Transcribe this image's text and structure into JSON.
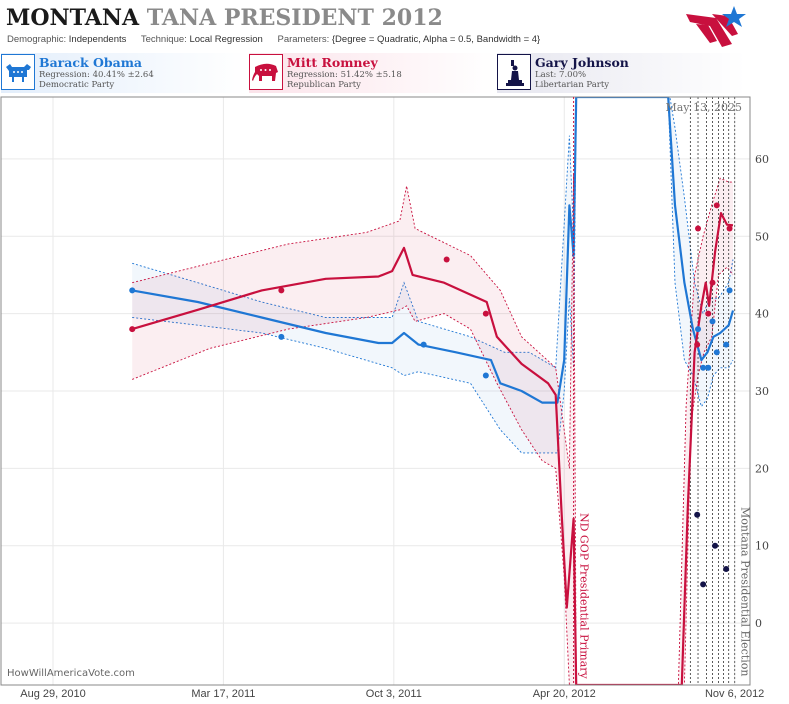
{
  "header": {
    "title_state": "MONTANA",
    "title_state_suffix": "TANA",
    "title_race": "PRESIDENT 2012",
    "demographic_label": "Demographic:",
    "demographic_value": "Independents",
    "technique_label": "Technique:",
    "technique_value": "Local Regression",
    "parameters_label": "Parameters:",
    "parameters_value": "{Degree = Quadratic, Alpha = 0.5, Bandwidth = 4}"
  },
  "candidates": [
    {
      "name": "Barack Obama",
      "stat": "Regression: 40.41% ±2.64",
      "party": "Democratic Party",
      "color": "#1f77d4",
      "icon": "donkey-icon"
    },
    {
      "name": "Mitt Romney",
      "stat": "Regression: 51.42% ±5.18",
      "party": "Republican Party",
      "color": "#c8103e",
      "icon": "elephant-icon"
    },
    {
      "name": "Gary Johnson",
      "stat": "Last: 7.00%",
      "party": "Libertarian Party",
      "color": "#141448",
      "icon": "liberty-icon"
    }
  ],
  "credit": "HowWillAmericaVote.com",
  "current_date": "May 13, 2025",
  "chart_data": {
    "type": "line",
    "x_ticks": [
      "Aug 29, 2010",
      "Mar 17, 2011",
      "Oct 3, 2011",
      "Apr 20, 2012",
      "Nov 6, 2012"
    ],
    "x_range": [
      "2010-06-29",
      "2012-11-24"
    ],
    "y_ticks": [
      0,
      10,
      20,
      30,
      40,
      50,
      60
    ],
    "ylim": [
      -8,
      68
    ],
    "events": [
      {
        "date": "2012-05-01",
        "label": "ND GOP Presidential Primary"
      },
      {
        "date": "2012-11-06",
        "label": "Montana Presidential Election"
      }
    ],
    "poll_guides": [
      "2012-09-15",
      "2012-09-24",
      "2012-10-04",
      "2012-10-11",
      "2012-10-18",
      "2012-10-24",
      "2012-10-30"
    ],
    "series": [
      {
        "name": "Barack Obama",
        "color": "#1f77d4",
        "points": [
          [
            "2010-11-30",
            43
          ],
          [
            "2011-05-24",
            37
          ],
          [
            "2011-11-07",
            36
          ],
          [
            "2012-01-19",
            32
          ],
          [
            "2012-09-24",
            38
          ],
          [
            "2012-09-30",
            33
          ],
          [
            "2012-10-06",
            33
          ],
          [
            "2012-10-11",
            39
          ],
          [
            "2012-10-16",
            35
          ],
          [
            "2012-10-27",
            36
          ],
          [
            "2012-10-31",
            43
          ]
        ],
        "trend": [
          [
            "2010-11-30",
            43
          ],
          [
            "2011-02-15",
            41.5
          ],
          [
            "2011-05-01",
            39.5
          ],
          [
            "2011-07-15",
            37.5
          ],
          [
            "2011-09-15",
            36.2
          ],
          [
            "2011-10-01",
            36.2
          ],
          [
            "2011-10-15",
            37.5
          ],
          [
            "2011-11-01",
            36
          ],
          [
            "2011-12-15",
            35
          ],
          [
            "2012-01-25",
            34
          ],
          [
            "2012-02-05",
            31
          ],
          [
            "2012-03-01",
            30
          ],
          [
            "2012-03-25",
            28.5
          ],
          [
            "2012-04-12",
            28.5
          ],
          [
            "2012-04-20",
            34
          ],
          [
            "2012-04-26",
            54
          ],
          [
            "2012-05-01",
            47.5
          ],
          [
            "2012-05-04",
            68
          ],
          [
            "2012-08-20",
            68
          ],
          [
            "2012-08-28",
            54
          ],
          [
            "2012-09-08",
            44
          ],
          [
            "2012-09-18",
            38
          ],
          [
            "2012-09-28",
            34
          ],
          [
            "2012-10-05",
            35
          ],
          [
            "2012-10-12",
            37
          ],
          [
            "2012-10-20",
            37.5
          ],
          [
            "2012-10-30",
            38.5
          ],
          [
            "2012-11-04",
            40.4
          ]
        ],
        "band_upper": [
          [
            "2010-11-30",
            46.5
          ],
          [
            "2011-02-15",
            44
          ],
          [
            "2011-05-01",
            41.5
          ],
          [
            "2011-07-15",
            39.5
          ],
          [
            "2011-10-01",
            39.5
          ],
          [
            "2011-10-15",
            44
          ],
          [
            "2011-11-01",
            39
          ],
          [
            "2012-01-01",
            37
          ],
          [
            "2012-02-10",
            35
          ],
          [
            "2012-03-10",
            35
          ],
          [
            "2012-04-10",
            33
          ],
          [
            "2012-04-26",
            63
          ],
          [
            "2012-05-01",
            50
          ],
          [
            "2012-05-04",
            68
          ],
          [
            "2012-08-22",
            68
          ],
          [
            "2012-08-28",
            64
          ],
          [
            "2012-09-08",
            55
          ],
          [
            "2012-09-20",
            44
          ],
          [
            "2012-09-30",
            40
          ],
          [
            "2012-10-08",
            42
          ],
          [
            "2012-10-18",
            42
          ],
          [
            "2012-10-30",
            44
          ],
          [
            "2012-11-04",
            47
          ]
        ],
        "band_lower": [
          [
            "2010-11-30",
            39.5
          ],
          [
            "2011-02-15",
            38.5
          ],
          [
            "2011-05-01",
            37.5
          ],
          [
            "2011-07-15",
            35.5
          ],
          [
            "2011-10-01",
            33
          ],
          [
            "2011-10-15",
            32
          ],
          [
            "2011-11-01",
            32.5
          ],
          [
            "2012-01-01",
            31
          ],
          [
            "2012-02-05",
            25
          ],
          [
            "2012-03-01",
            22
          ],
          [
            "2012-03-25",
            22
          ],
          [
            "2012-04-12",
            22
          ],
          [
            "2012-04-20",
            30
          ],
          [
            "2012-04-26",
            42
          ],
          [
            "2012-05-01",
            33
          ],
          [
            "2012-05-04",
            68
          ],
          [
            "2012-08-20",
            68
          ],
          [
            "2012-08-28",
            44
          ],
          [
            "2012-09-08",
            34
          ],
          [
            "2012-09-18",
            32
          ],
          [
            "2012-09-28",
            28
          ],
          [
            "2012-10-05",
            29
          ],
          [
            "2012-10-12",
            32
          ],
          [
            "2012-10-20",
            33
          ],
          [
            "2012-10-30",
            33
          ],
          [
            "2012-11-04",
            34
          ]
        ]
      },
      {
        "name": "Mitt Romney",
        "color": "#c8103e",
        "points": [
          [
            "2010-11-30",
            38
          ],
          [
            "2011-05-24",
            43
          ],
          [
            "2011-12-04",
            47
          ],
          [
            "2012-01-19",
            40
          ],
          [
            "2012-09-23",
            36
          ],
          [
            "2012-09-24",
            51
          ],
          [
            "2012-10-06",
            40
          ],
          [
            "2012-10-11",
            44
          ],
          [
            "2012-10-16",
            54
          ],
          [
            "2012-10-31",
            51
          ]
        ],
        "trend": [
          [
            "2010-11-30",
            38
          ],
          [
            "2011-02-15",
            40.5
          ],
          [
            "2011-05-01",
            43
          ],
          [
            "2011-07-15",
            44.5
          ],
          [
            "2011-09-15",
            44.8
          ],
          [
            "2011-10-01",
            45.5
          ],
          [
            "2011-10-15",
            48.5
          ],
          [
            "2011-10-25",
            45
          ],
          [
            "2011-12-01",
            44
          ],
          [
            "2012-01-20",
            41.5
          ],
          [
            "2012-02-01",
            37
          ],
          [
            "2012-03-01",
            33.5
          ],
          [
            "2012-04-01",
            31
          ],
          [
            "2012-04-10",
            29.5
          ],
          [
            "2012-04-17",
            14
          ],
          [
            "2012-04-23",
            2
          ],
          [
            "2012-05-01",
            13.5
          ],
          [
            "2012-05-04",
            -8
          ],
          [
            "2012-09-05",
            -8
          ],
          [
            "2012-09-12",
            15
          ],
          [
            "2012-09-20",
            35
          ],
          [
            "2012-09-28",
            41
          ],
          [
            "2012-10-03",
            44
          ],
          [
            "2012-10-07",
            41
          ],
          [
            "2012-10-14",
            48
          ],
          [
            "2012-10-21",
            53
          ],
          [
            "2012-10-28",
            51.5
          ],
          [
            "2012-11-04",
            51.4
          ]
        ],
        "band_upper": [
          [
            "2010-11-30",
            44
          ],
          [
            "2011-03-01",
            46.5
          ],
          [
            "2011-06-01",
            49
          ],
          [
            "2011-09-01",
            50.5
          ],
          [
            "2011-10-10",
            52
          ],
          [
            "2011-10-18",
            56.5
          ],
          [
            "2011-10-28",
            51
          ],
          [
            "2012-01-01",
            47.5
          ],
          [
            "2012-02-05",
            43
          ],
          [
            "2012-03-01",
            37
          ],
          [
            "2012-04-10",
            33
          ],
          [
            "2012-04-26",
            20
          ],
          [
            "2012-05-01",
            58
          ],
          [
            "2012-05-04",
            -8
          ],
          [
            "2012-09-01",
            -8
          ],
          [
            "2012-09-10",
            28
          ],
          [
            "2012-09-20",
            45
          ],
          [
            "2012-09-30",
            50
          ],
          [
            "2012-10-10",
            54
          ],
          [
            "2012-10-20",
            57.5
          ],
          [
            "2012-10-30",
            57
          ],
          [
            "2012-11-04",
            57
          ]
        ],
        "band_lower": [
          [
            "2010-11-30",
            31.5
          ],
          [
            "2011-03-01",
            35.5
          ],
          [
            "2011-06-01",
            38
          ],
          [
            "2011-09-01",
            39.5
          ],
          [
            "2011-10-10",
            40.5
          ],
          [
            "2011-10-18",
            41
          ],
          [
            "2011-10-28",
            39
          ],
          [
            "2011-12-01",
            40
          ],
          [
            "2012-01-01",
            38
          ],
          [
            "2012-02-01",
            31
          ],
          [
            "2012-03-01",
            25
          ],
          [
            "2012-03-25",
            21
          ],
          [
            "2012-04-10",
            20
          ],
          [
            "2012-04-20",
            6
          ],
          [
            "2012-04-26",
            -8
          ],
          [
            "2012-09-08",
            -8
          ],
          [
            "2012-09-16",
            26
          ],
          [
            "2012-09-24",
            32
          ],
          [
            "2012-10-01",
            35
          ],
          [
            "2012-10-10",
            37
          ],
          [
            "2012-10-18",
            45
          ],
          [
            "2012-10-28",
            46
          ],
          [
            "2012-11-04",
            45
          ]
        ]
      },
      {
        "name": "Gary Johnson",
        "color": "#141448",
        "points": [
          [
            "2012-09-23",
            14
          ],
          [
            "2012-09-30",
            5
          ],
          [
            "2012-10-14",
            10
          ],
          [
            "2012-10-27",
            7
          ]
        ]
      }
    ]
  }
}
